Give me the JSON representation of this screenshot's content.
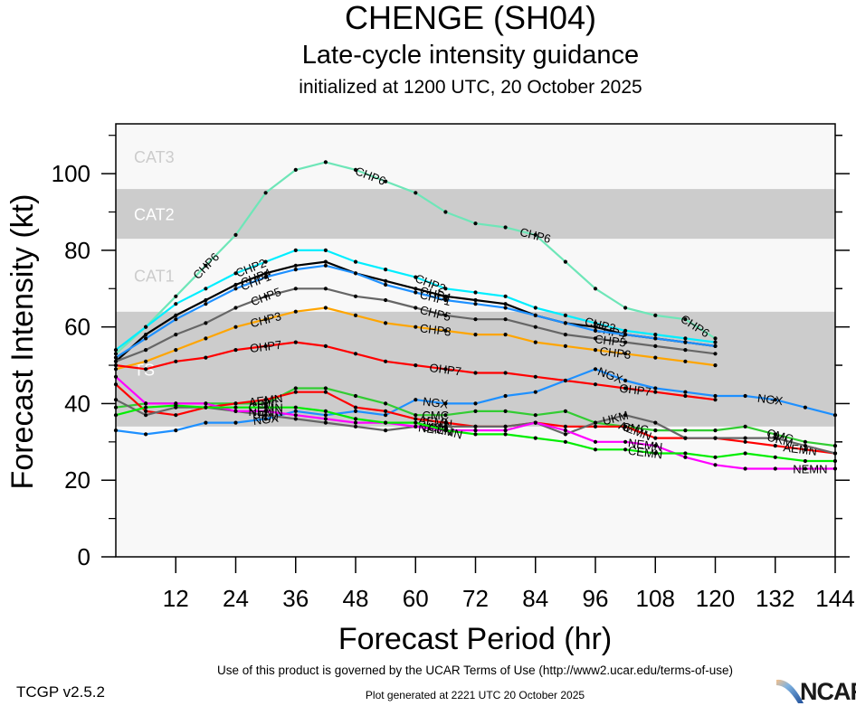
{
  "header": {
    "storm_title": "CHENGE (SH04)",
    "subtitle": "Late-cycle intensity guidance",
    "init_line": "initialized at 1200 UTC, 20 October 2025"
  },
  "footer": {
    "terms": "Use of this product is governed by the UCAR Terms of Use (http://www2.ucar.edu/terms-of-use)",
    "version": "TCGP v2.5.2",
    "generated": "Plot generated at 2221 UTC   20 October 2025",
    "logo_text": "NCAR"
  },
  "chart_data": {
    "type": "line",
    "title": "CHENGE (SH04) Late-cycle intensity guidance",
    "xlabel": "Forecast Period (hr)",
    "ylabel": "Forecast Intensity (kt)",
    "xlim": [
      0,
      144
    ],
    "ylim": [
      0,
      113
    ],
    "xticks": [
      12,
      24,
      36,
      48,
      60,
      72,
      84,
      96,
      108,
      120,
      132,
      144
    ],
    "yticks": [
      0,
      20,
      40,
      60,
      80,
      100
    ],
    "yminor_step": 10,
    "grid": false,
    "bands": [
      {
        "label": "TS",
        "from": 34,
        "to": 64,
        "fill": "#cccccc",
        "label_color": "#ffffff"
      },
      {
        "label": "CAT1",
        "from": 64,
        "to": 83,
        "fill": "#f8f8f8",
        "label_color": "#cccccc"
      },
      {
        "label": "CAT2",
        "from": 83,
        "to": 96,
        "fill": "#cccccc",
        "label_color": "#ffffff"
      },
      {
        "label": "CAT3",
        "from": 96,
        "to": 113,
        "fill": "#f8f8f8",
        "label_color": "#cccccc"
      }
    ],
    "below_band_fill": "#f8f8f8",
    "x": [
      0,
      6,
      12,
      18,
      24,
      30,
      36,
      42,
      48,
      54,
      60,
      66,
      72,
      78,
      84,
      90,
      96,
      102,
      108,
      114,
      120,
      126,
      132,
      138,
      144
    ],
    "series": [
      {
        "name": "CHP6",
        "color": "#6ee6b8",
        "values": [
          53,
          60,
          68,
          76,
          84,
          95,
          101,
          103,
          101,
          98,
          95,
          90,
          87,
          86,
          84,
          77,
          70,
          65,
          63,
          62,
          57,
          null,
          null,
          null,
          null
        ],
        "labels_at": [
          18,
          51,
          84,
          116
        ]
      },
      {
        "name": "CHP2",
        "color": "#00eeff",
        "values": [
          54,
          60,
          66,
          70,
          74,
          77,
          80,
          80,
          77,
          75,
          73,
          70,
          69,
          68,
          65,
          63,
          61,
          59,
          58,
          57,
          56,
          null,
          null,
          null,
          null
        ],
        "labels_at": [
          27,
          63,
          97
        ]
      },
      {
        "name": "CHP4",
        "color": "#000000",
        "values": [
          51,
          58,
          63,
          67,
          71,
          74,
          76,
          77,
          74,
          72,
          70,
          68,
          67,
          66,
          63,
          61,
          60,
          58,
          57,
          56,
          55,
          null,
          null,
          null,
          null
        ],
        "labels_at": [
          28,
          64,
          99
        ]
      },
      {
        "name": "CHP1",
        "color": "#1e90ff",
        "values": [
          52,
          57,
          62,
          66,
          70,
          73,
          75,
          76,
          74,
          71,
          69,
          67,
          66,
          65,
          63,
          61,
          59,
          58,
          57,
          56,
          55,
          null,
          null,
          null,
          null
        ],
        "labels_at": [
          28,
          64
        ]
      },
      {
        "name": "CHP5",
        "color": "#666666",
        "values": [
          51,
          54,
          58,
          61,
          65,
          68,
          70,
          70,
          68,
          67,
          65,
          63,
          62,
          62,
          60,
          58,
          57,
          56,
          55,
          54,
          53,
          null,
          null,
          null,
          null
        ],
        "labels_at": [
          30,
          64,
          99
        ]
      },
      {
        "name": "CHP3",
        "color": "#ffa500",
        "values": [
          49,
          51,
          54,
          57,
          60,
          62,
          64,
          65,
          63,
          61,
          60,
          59,
          58,
          58,
          56,
          55,
          54,
          53,
          52,
          51,
          50,
          null,
          null,
          null,
          null
        ],
        "labels_at": [
          30,
          64,
          100
        ]
      },
      {
        "name": "OHP7",
        "color": "#ff0000",
        "values": [
          50,
          49,
          51,
          52,
          54,
          55,
          56,
          55,
          53,
          51,
          50,
          49,
          48,
          48,
          47,
          46,
          45,
          44,
          43,
          42,
          41,
          null,
          null,
          null,
          null
        ],
        "labels_at": [
          30,
          66,
          104
        ]
      },
      {
        "name": "NGX",
        "color": "#1e90ff",
        "values": [
          33,
          32,
          33,
          35,
          35,
          36,
          38,
          37,
          38,
          37,
          41,
          40,
          40,
          42,
          43,
          46,
          49,
          46,
          44,
          43,
          42,
          42,
          41,
          39,
          37
        ],
        "labels_at": [
          30,
          64,
          99,
          131
        ]
      },
      {
        "name": "CMC",
        "color": "#33cc33",
        "values": [
          39,
          40,
          40,
          40,
          40,
          40,
          44,
          44,
          42,
          40,
          37,
          37,
          38,
          38,
          37,
          38,
          35,
          34,
          33,
          33,
          33,
          34,
          32,
          30,
          29
        ],
        "labels_at": [
          30,
          64,
          104,
          133
        ]
      },
      {
        "name": "AEMN",
        "color": "#ff0000",
        "values": [
          45,
          38,
          37,
          39,
          40,
          41,
          43,
          43,
          39,
          38,
          36,
          35,
          34,
          34,
          35,
          34,
          34,
          34,
          31,
          31,
          31,
          30,
          29,
          28,
          27
        ],
        "labels_at": [
          30,
          64,
          104,
          137
        ]
      },
      {
        "name": "UKM",
        "color": "#666666",
        "values": [
          41,
          37,
          39,
          39,
          38,
          37,
          36,
          35,
          34,
          33,
          34,
          34,
          34,
          34,
          35,
          32,
          35,
          37,
          35,
          31,
          31,
          31,
          31,
          29,
          27
        ],
        "labels_at": [
          30,
          64,
          100,
          133
        ]
      },
      {
        "name": "NEMN",
        "color": "#ff00ff",
        "values": [
          47,
          40,
          40,
          40,
          38,
          38,
          37,
          36,
          35,
          35,
          34,
          33,
          33,
          33,
          35,
          33,
          30,
          30,
          29,
          26,
          24,
          23,
          23,
          23,
          23
        ],
        "labels_at": [
          30,
          64,
          106,
          139
        ]
      },
      {
        "name": "CEMN",
        "color": "#00ee00",
        "values": [
          37,
          39,
          39.5,
          39,
          39,
          39,
          39,
          38,
          36,
          35,
          35,
          33,
          32,
          32,
          31,
          30,
          28,
          28,
          27,
          27,
          26,
          27,
          26,
          25,
          25
        ],
        "labels_at": [
          30,
          66,
          106
        ]
      }
    ]
  }
}
